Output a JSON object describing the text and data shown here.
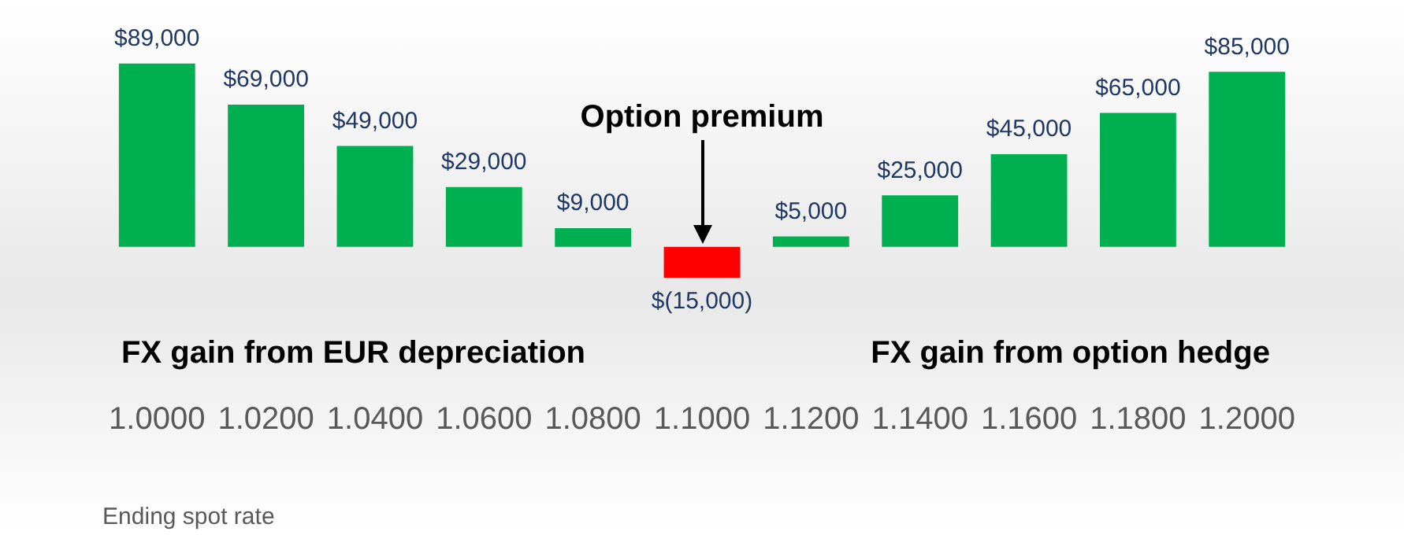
{
  "chart_data": {
    "type": "bar",
    "xlabel": "Ending spot rate",
    "categories": [
      "1.0000",
      "1.0200",
      "1.0400",
      "1.0600",
      "1.0800",
      "1.1000",
      "1.1200",
      "1.1400",
      "1.1600",
      "1.1800",
      "1.2000"
    ],
    "values": [
      89000,
      69000,
      49000,
      29000,
      9000,
      -15000,
      5000,
      25000,
      45000,
      65000,
      85000
    ],
    "colors": [
      "#00b050",
      "#00b050",
      "#00b050",
      "#00b050",
      "#00b050",
      "#ff0000",
      "#00b050",
      "#00b050",
      "#00b050",
      "#00b050",
      "#00b050"
    ],
    "value_labels": [
      "$89,000",
      "$69,000",
      "$49,000",
      "$29,000",
      "$9,000",
      "$(15,000)",
      "$5,000",
      "$25,000",
      "$45,000",
      "$65,000",
      "$85,000"
    ],
    "tick_labels": "x",
    "grid": false,
    "legend": false,
    "annotations": [
      "Option premium",
      "FX gain from EUR depreciation",
      "FX gain from option hedge"
    ]
  }
}
